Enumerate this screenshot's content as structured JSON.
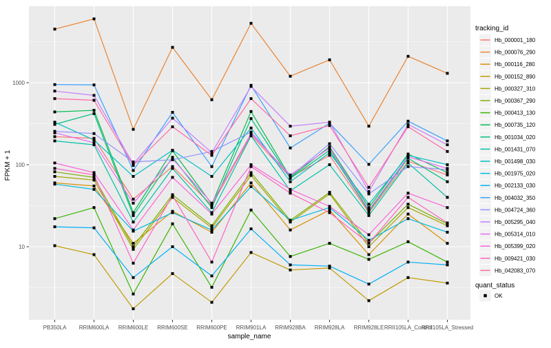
{
  "figure": {
    "panel_bg": "#EBEBEB",
    "grid_color": "#FFFFFF",
    "tick_text_color": "#4D4D4D",
    "tick_mark_color": "#333333",
    "legend_key_bg": "#F2F2F2",
    "point_color": "#000000"
  },
  "axes": {
    "x_title": "sample_name",
    "y_title": "FPKM + 1",
    "y_tick_labels": [
      "1000",
      "100",
      "10"
    ],
    "y_tick_values": [
      1000,
      100,
      10
    ],
    "y_minor_values": [
      3162,
      316,
      31.6,
      3.16
    ]
  },
  "legend": {
    "tracking_title": "tracking_id",
    "quant_title": "quant_status",
    "quant_entries": [
      {
        "label": "OK"
      }
    ]
  },
  "chart_data": {
    "type": "line",
    "title": "",
    "xlabel": "sample_name",
    "ylabel": "FPKM + 1",
    "y_scale": "log10",
    "ylim": [
      1.3,
      8800
    ],
    "grid": true,
    "legend_position": "right",
    "point_shape": "filled-square",
    "point_color": "#000000",
    "categories": [
      "PB350LA",
      "RRIM600LA",
      "RRIM600LE",
      "RRIM600SE",
      "RRIM600PE",
      "RRIM901LA",
      "RRIM928BA",
      "RRIM928LA",
      "RRIM928LE",
      "RRII105LA_Control",
      "RRII105LA_Stressed"
    ],
    "series": [
      {
        "name": "Hb_000001_180",
        "color": "#F8766D",
        "values": [
          220,
          210,
          38,
          95,
          32,
          230,
          70,
          130,
          26,
          110,
          75
        ]
      },
      {
        "name": "Hb_000076_290",
        "color": "#EA8331",
        "values": [
          4500,
          6000,
          270,
          2700,
          620,
          5300,
          1200,
          1900,
          295,
          2100,
          1300
        ]
      },
      {
        "name": "Hb_000116_280",
        "color": "#D89000",
        "values": [
          60,
          55,
          11,
          27,
          15,
          60,
          16,
          28,
          8,
          25,
          11
        ]
      },
      {
        "name": "Hb_000152_890",
        "color": "#C09B00",
        "values": [
          10.3,
          8,
          1.75,
          4.7,
          2.1,
          8.5,
          5.2,
          5.5,
          2.2,
          4.2,
          3.6
        ]
      },
      {
        "name": "Hb_000327_310",
        "color": "#A3A500",
        "values": [
          72,
          65,
          9.3,
          40,
          17,
          74,
          20,
          44,
          10,
          30,
          18
        ]
      },
      {
        "name": "Hb_000367_290",
        "color": "#7CAE00",
        "values": [
          82,
          70,
          10,
          43,
          18,
          80,
          21,
          46,
          11,
          33,
          19
        ]
      },
      {
        "name": "Hb_000413_130",
        "color": "#39B600",
        "values": [
          22,
          30,
          2.65,
          19,
          3.2,
          28,
          7.6,
          11,
          7,
          11.5,
          6.5
        ]
      },
      {
        "name": "Hb_000735_120",
        "color": "#00BB4E",
        "values": [
          440,
          460,
          26,
          148,
          33,
          445,
          70,
          165,
          30,
          135,
          80
        ]
      },
      {
        "name": "Hb_001034_020",
        "color": "#00BF7D",
        "values": [
          310,
          420,
          24,
          123,
          30,
          365,
          68,
          150,
          27,
          120,
          62
        ]
      },
      {
        "name": "Hb_001431_070",
        "color": "#00C1A3",
        "values": [
          195,
          175,
          20,
          90,
          26,
          225,
          48,
          100,
          24,
          105,
          40
        ]
      },
      {
        "name": "Hb_001498_030",
        "color": "#00BFC4",
        "values": [
          330,
          200,
          72,
          150,
          72,
          280,
          62,
          140,
          33,
          130,
          100
        ]
      },
      {
        "name": "Hb_001975_020",
        "color": "#00BAE0",
        "values": [
          58,
          50,
          15.5,
          26,
          16,
          54,
          21,
          30,
          12,
          22,
          15
        ]
      },
      {
        "name": "Hb_002133_030",
        "color": "#00B0F6",
        "values": [
          17.5,
          17,
          4.2,
          10,
          4.4,
          16.5,
          6,
          5.8,
          3.5,
          6.5,
          6
        ]
      },
      {
        "name": "Hb_004032_350",
        "color": "#35A2FF",
        "values": [
          950,
          940,
          85,
          435,
          95,
          930,
          160,
          320,
          101,
          340,
          195
        ]
      },
      {
        "name": "Hb_004724_360",
        "color": "#9590FF",
        "values": [
          255,
          240,
          108,
          115,
          145,
          250,
          72,
          180,
          44,
          95,
          87
        ]
      },
      {
        "name": "Hb_005295_040",
        "color": "#C77CFF",
        "values": [
          790,
          700,
          102,
          370,
          140,
          900,
          295,
          330,
          47,
          310,
          175
        ]
      },
      {
        "name": "Hb_005314_010",
        "color": "#E76BF3",
        "values": [
          245,
          185,
          34,
          118,
          34,
          240,
          75,
          160,
          28,
          125,
          90
        ]
      },
      {
        "name": "Hb_005399_020",
        "color": "#FA62DB",
        "values": [
          105,
          80,
          16,
          70,
          25,
          100,
          50,
          31,
          14,
          45,
          30
        ]
      },
      {
        "name": "Hb_009421_030",
        "color": "#FF61C3",
        "values": [
          90,
          75,
          6.3,
          42,
          6.5,
          95,
          45,
          26,
          11,
          40,
          19.5
        ]
      },
      {
        "name": "Hb_042083_070",
        "color": "#FF67A4",
        "values": [
          640,
          610,
          98,
          290,
          130,
          640,
          225,
          300,
          53,
          290,
          145
        ]
      }
    ]
  }
}
